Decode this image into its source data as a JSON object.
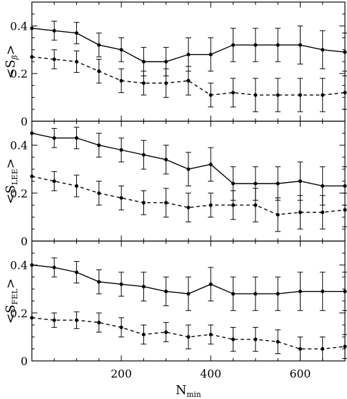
{
  "chart_data": [
    {
      "type": "line",
      "ylabel": "<S",
      "ylabel_sub": "β",
      "ylabel_end": ">",
      "xlim": [
        0,
        700
      ],
      "ylim": [
        0,
        0.5
      ],
      "yticks": [
        0,
        0.2,
        0.4
      ],
      "ytick_labels": [
        "0",
        "0.2",
        "0.4"
      ],
      "series": [
        {
          "style": "solid",
          "x": [
            0,
            50,
            100,
            150,
            200,
            250,
            300,
            350,
            400,
            450,
            500,
            550,
            600,
            650,
            700
          ],
          "y": [
            0.39,
            0.38,
            0.37,
            0.32,
            0.3,
            0.25,
            0.25,
            0.28,
            0.28,
            0.32,
            0.32,
            0.32,
            0.32,
            0.3,
            0.29
          ],
          "err": [
            null,
            0.04,
            0.045,
            0.05,
            0.05,
            0.06,
            0.06,
            0.07,
            0.07,
            0.07,
            0.07,
            0.07,
            0.08,
            0.08,
            0.08
          ]
        },
        {
          "style": "dashed",
          "x": [
            0,
            50,
            100,
            150,
            200,
            250,
            300,
            350,
            400,
            450,
            500,
            550,
            600,
            650,
            700
          ],
          "y": [
            0.27,
            0.26,
            0.25,
            0.21,
            0.17,
            0.16,
            0.16,
            0.17,
            0.11,
            0.12,
            0.11,
            0.11,
            0.11,
            0.11,
            0.12
          ],
          "err": [
            null,
            0.04,
            0.045,
            0.05,
            0.05,
            0.05,
            0.06,
            0.06,
            0.05,
            0.06,
            0.07,
            0.07,
            0.07,
            0.07,
            0.07
          ]
        }
      ]
    },
    {
      "type": "line",
      "ylabel": "<S",
      "ylabel_sub": "LEE",
      "ylabel_end": ">",
      "xlim": [
        0,
        700
      ],
      "ylim": [
        0,
        0.5
      ],
      "yticks": [
        0,
        0.2,
        0.4
      ],
      "ytick_labels": [
        "0",
        "0.2",
        "0.4"
      ],
      "series": [
        {
          "style": "solid",
          "x": [
            0,
            50,
            100,
            150,
            200,
            250,
            300,
            350,
            400,
            450,
            500,
            550,
            600,
            650,
            700
          ],
          "y": [
            0.45,
            0.43,
            0.43,
            0.4,
            0.38,
            0.36,
            0.34,
            0.3,
            0.32,
            0.24,
            0.24,
            0.24,
            0.25,
            0.23,
            0.23
          ],
          "err": [
            null,
            0.04,
            0.045,
            0.05,
            0.05,
            0.06,
            0.06,
            0.07,
            0.07,
            0.07,
            0.07,
            0.07,
            0.08,
            0.08,
            0.08
          ]
        },
        {
          "style": "dashed",
          "x": [
            0,
            50,
            100,
            150,
            200,
            250,
            300,
            350,
            400,
            450,
            500,
            550,
            600,
            650,
            700
          ],
          "y": [
            0.27,
            0.25,
            0.23,
            0.2,
            0.18,
            0.16,
            0.16,
            0.14,
            0.15,
            0.15,
            0.15,
            0.11,
            0.12,
            0.12,
            0.13
          ],
          "err": [
            null,
            0.04,
            0.045,
            0.05,
            0.05,
            0.05,
            0.06,
            0.06,
            0.05,
            0.06,
            0.07,
            0.07,
            0.07,
            0.07,
            0.07
          ]
        }
      ]
    },
    {
      "type": "line",
      "ylabel": "<S",
      "ylabel_sub": "FEL",
      "ylabel_end": ">",
      "xlabel": "N",
      "xlabel_sub": "min",
      "xlim": [
        0,
        700
      ],
      "ylim": [
        0,
        0.5
      ],
      "xticks": [
        200,
        400,
        600
      ],
      "xtick_labels": [
        "200",
        "400",
        "600"
      ],
      "yticks": [
        0,
        0.2,
        0.4
      ],
      "ytick_labels": [
        "0",
        "0.2",
        "0.4"
      ],
      "series": [
        {
          "style": "solid",
          "x": [
            0,
            50,
            100,
            150,
            200,
            250,
            300,
            350,
            400,
            450,
            500,
            550,
            600,
            650,
            700
          ],
          "y": [
            0.4,
            0.39,
            0.37,
            0.33,
            0.32,
            0.31,
            0.29,
            0.28,
            0.32,
            0.28,
            0.28,
            0.28,
            0.29,
            0.29,
            0.29
          ],
          "err": [
            null,
            0.04,
            0.045,
            0.05,
            0.05,
            0.06,
            0.06,
            0.07,
            0.07,
            0.07,
            0.07,
            0.07,
            0.08,
            0.08,
            0.08
          ]
        },
        {
          "style": "dashed",
          "x": [
            0,
            50,
            100,
            150,
            200,
            250,
            300,
            350,
            400,
            450,
            500,
            550,
            600,
            650,
            700
          ],
          "y": [
            0.18,
            0.17,
            0.17,
            0.16,
            0.14,
            0.11,
            0.12,
            0.1,
            0.11,
            0.09,
            0.09,
            0.08,
            0.05,
            0.05,
            0.06
          ],
          "err": [
            null,
            0.03,
            0.035,
            0.04,
            0.04,
            0.04,
            0.04,
            0.05,
            0.04,
            0.05,
            0.05,
            0.05,
            0.05,
            0.05,
            0.05
          ]
        }
      ]
    }
  ]
}
